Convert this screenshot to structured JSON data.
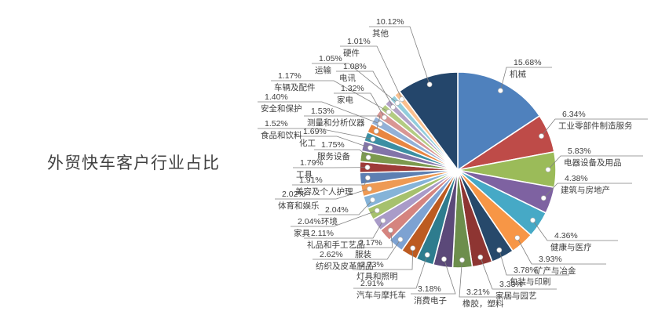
{
  "page": {
    "title": "外贸快车客户行业占比"
  },
  "chart_data": {
    "type": "pie",
    "title": "外贸快车客户行业占比",
    "layout_hint": "slices start at 12 o'clock, clockwise; callout labels with leader lines and white dots",
    "slices": [
      {
        "label": "机械",
        "pct": "15.68%",
        "value": 15.68,
        "color": "#4F81BD"
      },
      {
        "label": "工业零部件制造服务",
        "pct": "6.34%",
        "value": 6.34,
        "color": "#BE4B48"
      },
      {
        "label": "电器设备及用品",
        "pct": "5.83%",
        "value": 5.83,
        "color": "#9BBB59"
      },
      {
        "label": "建筑与房地产",
        "pct": "4.38%",
        "value": 4.38,
        "color": "#7E62A1"
      },
      {
        "label": "健康与医疗",
        "pct": "4.36%",
        "value": 4.36,
        "color": "#46A9C6"
      },
      {
        "label": "矿产与冶金",
        "pct": "3.93%",
        "value": 3.93,
        "color": "#F79646"
      },
      {
        "label": "包装与印刷",
        "pct": "3.78%",
        "value": 3.78,
        "color": "#27496B"
      },
      {
        "label": "家居与园艺",
        "pct": "3.33%",
        "value": 3.33,
        "color": "#8E3532"
      },
      {
        "label": "橡胶，塑料",
        "pct": "3.21%",
        "value": 3.21,
        "color": "#6D8E4C"
      },
      {
        "label": "消费电子",
        "pct": "3.18%",
        "value": 3.18,
        "color": "#5B4979"
      },
      {
        "label": "汽车与摩托车",
        "pct": "2.91%",
        "value": 2.91,
        "color": "#2E7C8E"
      },
      {
        "label": "灯具和照明",
        "pct": "2.73%",
        "value": 2.73,
        "color": "#BC5B21"
      },
      {
        "label": "纺织及皮革制品",
        "pct": "2.62%",
        "value": 2.62,
        "color": "#7DA2D2"
      },
      {
        "label": "服装",
        "pct": "2.17%",
        "value": 2.17,
        "color": "#D5847F"
      },
      {
        "label": "礼品和手工艺品",
        "pct": "2.11%",
        "value": 2.11,
        "color": "#A99BC8"
      },
      {
        "label": "家具",
        "pct": "2.04%",
        "value": 2.04,
        "color": "#A6C16D"
      },
      {
        "label": "环境",
        "pct": "2.04%",
        "value": 2.04,
        "color": "#85B3D8"
      },
      {
        "label": "体育和娱乐",
        "pct": "2.02%",
        "value": 2.02,
        "color": "#EE9A54"
      },
      {
        "label": "美容及个人护理",
        "pct": "1.91%",
        "value": 1.91,
        "color": "#5D7FB2"
      },
      {
        "label": "工具",
        "pct": "1.79%",
        "value": 1.79,
        "color": "#9E3B38"
      },
      {
        "label": "服务设备",
        "pct": "1.75%",
        "value": 1.75,
        "color": "#7C9A4E"
      },
      {
        "label": "化工",
        "pct": "1.69%",
        "value": 1.69,
        "color": "#8274A8"
      },
      {
        "label": "食品和饮料",
        "pct": "1.52%",
        "value": 1.52,
        "color": "#3C8FA3"
      },
      {
        "label": "测量和分析仪器",
        "pct": "1.53%",
        "value": 1.53,
        "color": "#E88642"
      },
      {
        "label": "安全和保护",
        "pct": "1.40%",
        "value": 1.4,
        "color": "#93B1D7"
      },
      {
        "label": "家电",
        "pct": "1.32%",
        "value": 1.32,
        "color": "#D99694"
      },
      {
        "label": "车辆及配件",
        "pct": "1.17%",
        "value": 1.17,
        "color": "#B3CC82"
      },
      {
        "label": "电讯",
        "pct": "1.08%",
        "value": 1.08,
        "color": "#B3A2C7"
      },
      {
        "label": "运输",
        "pct": "1.05%",
        "value": 1.05,
        "color": "#92CDDC"
      },
      {
        "label": "硬件",
        "pct": "1.01%",
        "value": 1.01,
        "color": "#FAC08F"
      },
      {
        "label": "其他",
        "pct": "10.12%",
        "value": 10.12,
        "color": "#24466B"
      }
    ]
  }
}
